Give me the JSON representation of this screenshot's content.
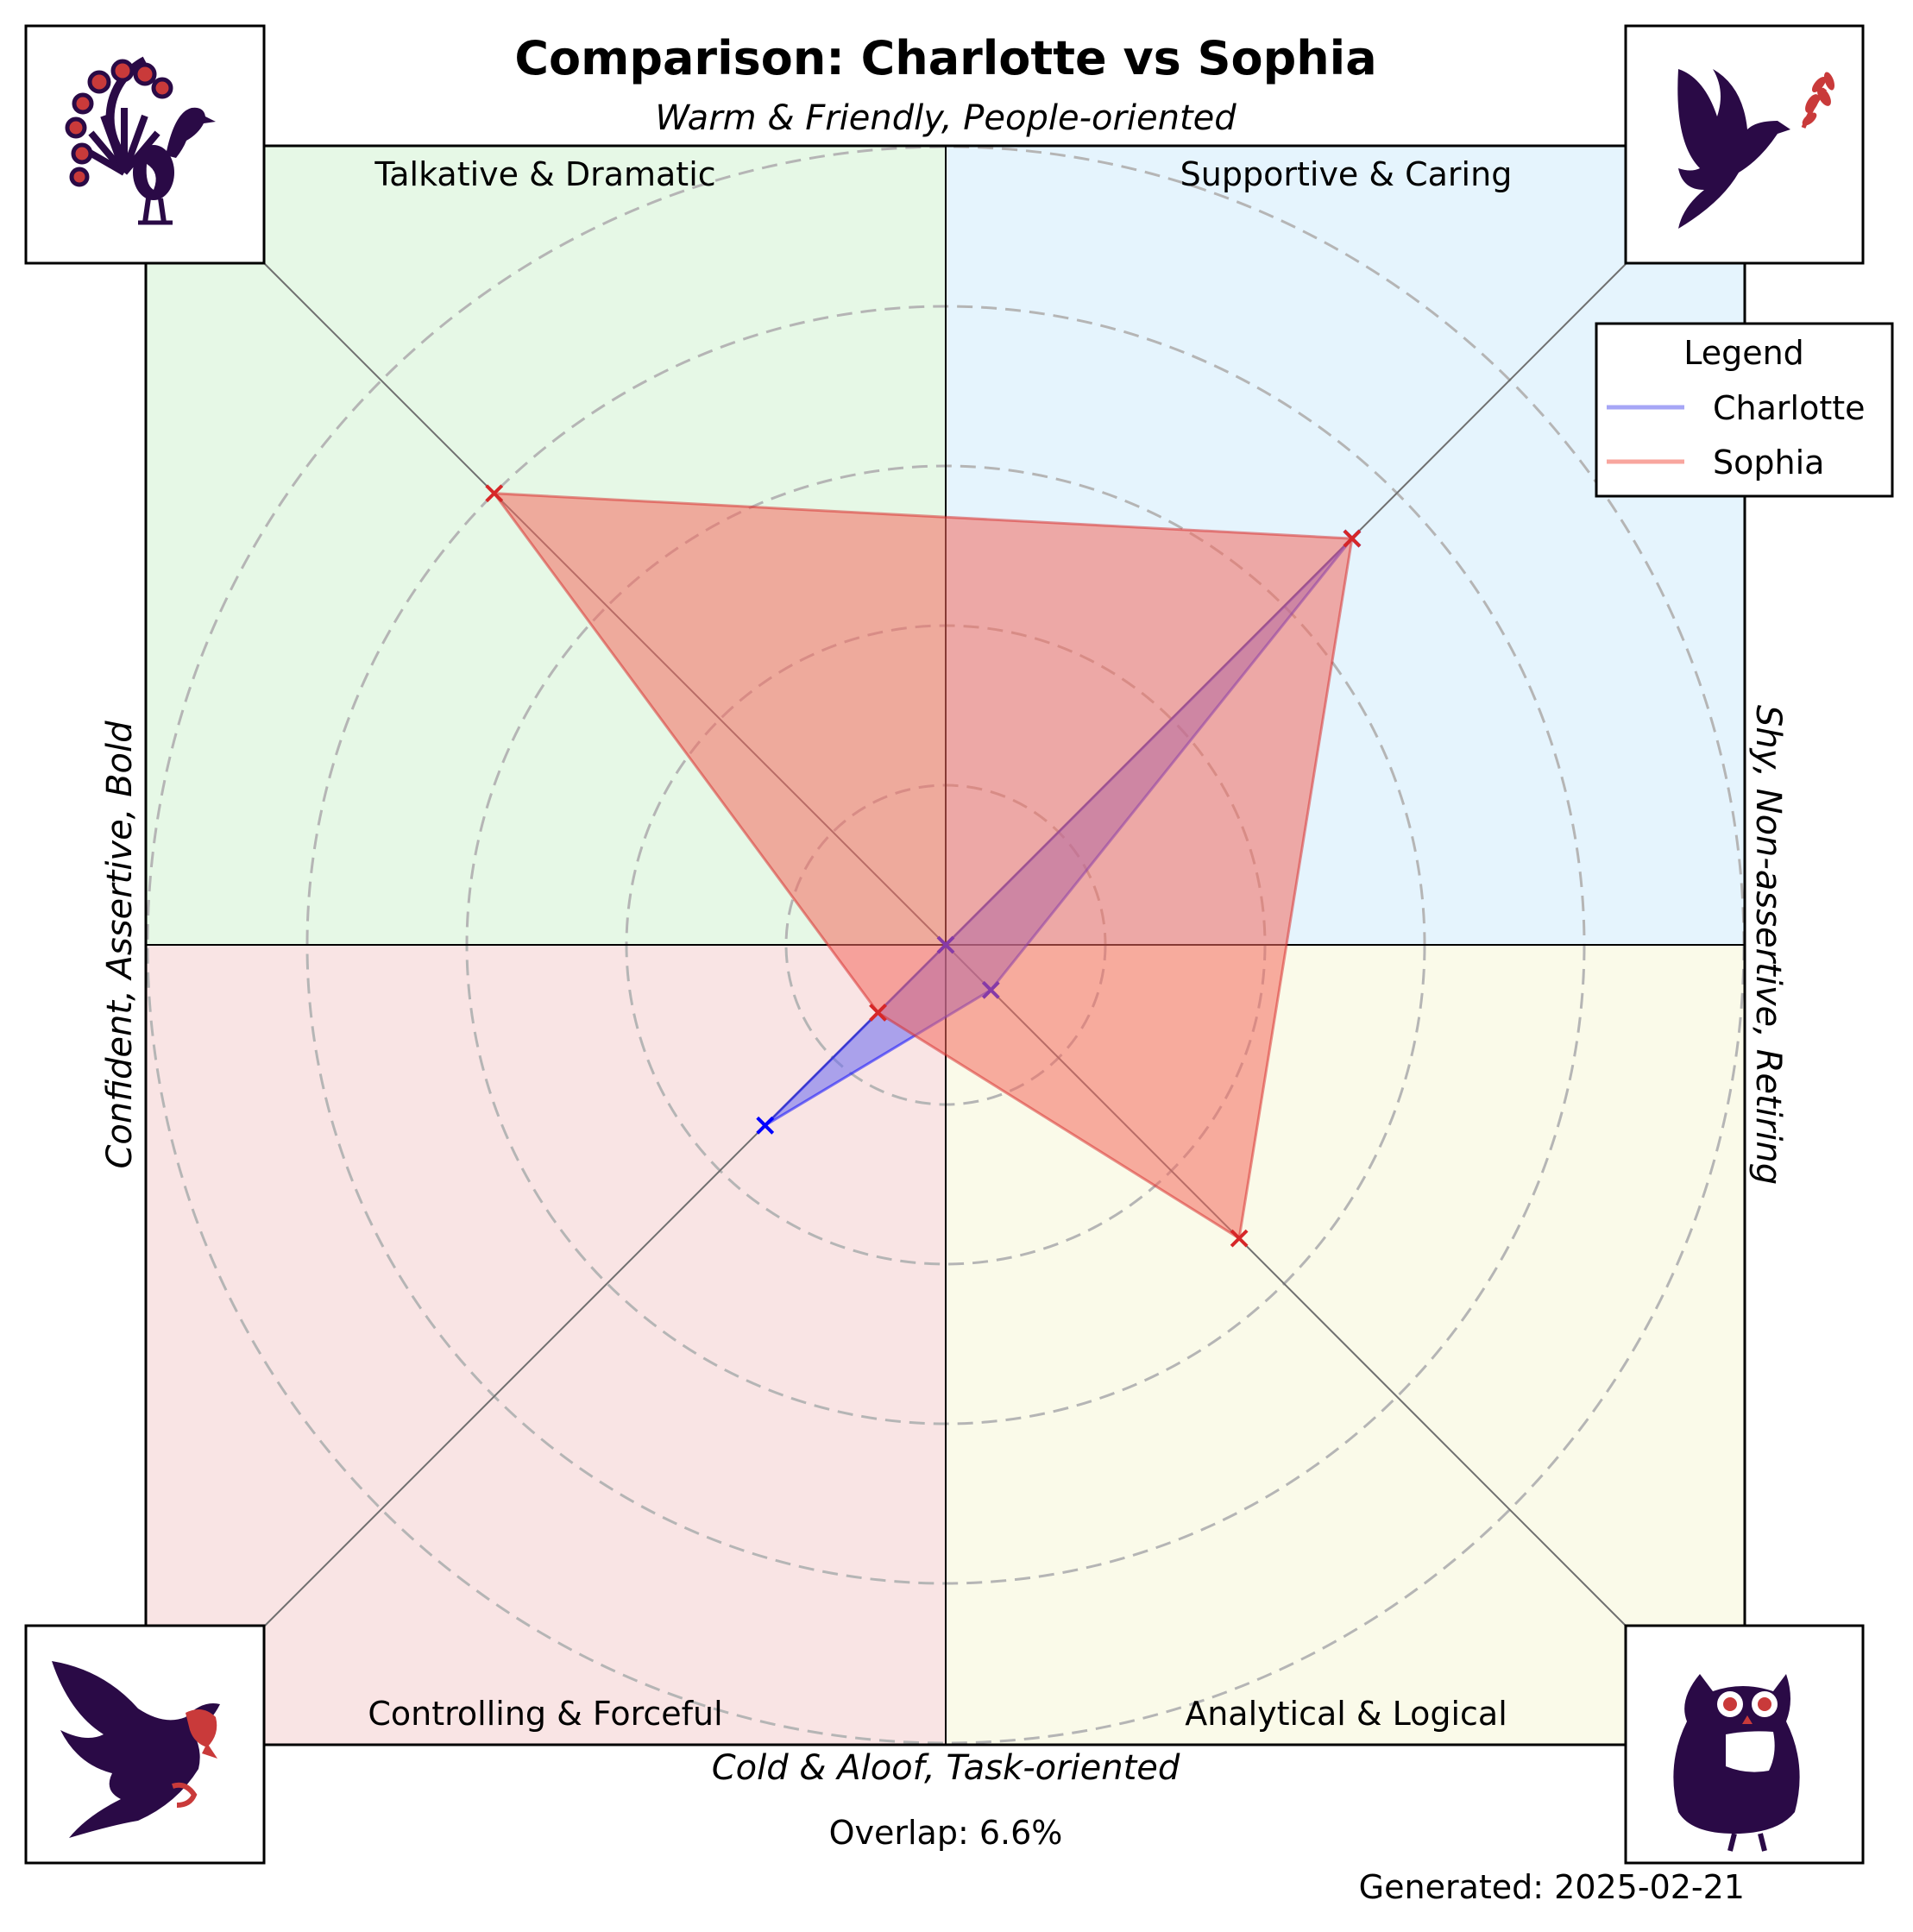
{
  "title": "Comparison: Charlotte vs Sophia",
  "axes": {
    "top": "Warm & Friendly, People-oriented",
    "bottom": "Cold & Aloof, Task-oriented",
    "left": "Confident, Assertive, Bold",
    "right": "Shy, Non-assertive, Retiring"
  },
  "quadrants": [
    {
      "key": "top-left",
      "label": "Talkative & Dramatic",
      "color": "#e6f8e6",
      "icon": "peacock-icon"
    },
    {
      "key": "top-right",
      "label": "Supportive & Caring",
      "color": "#e5f4fd",
      "icon": "dove-icon"
    },
    {
      "key": "bottom-left",
      "label": "Controlling & Forceful",
      "color": "#f9e4e4",
      "icon": "eagle-icon"
    },
    {
      "key": "bottom-right",
      "label": "Analytical & Logical",
      "color": "#fafae9",
      "icon": "owl-icon"
    }
  ],
  "legend": {
    "title": "Legend",
    "placement": "top-right"
  },
  "chart_data": {
    "type": "radar",
    "axes_order": [
      "Supportive & Caring",
      "Talkative & Dramatic",
      "Controlling & Forceful",
      "Analytical & Logical"
    ],
    "rlim": [
      0,
      100
    ],
    "rings": [
      20,
      40,
      60,
      80,
      100
    ],
    "series": [
      {
        "name": "Charlotte",
        "color": "#0000ff",
        "fill": "#6a6af0",
        "values": [
          72,
          0,
          32,
          8
        ]
      },
      {
        "name": "Sophia",
        "color": "#d62728",
        "fill": "#f46a5e",
        "values": [
          72,
          80,
          12,
          52
        ]
      }
    ]
  },
  "footer": {
    "overlap": "Overlap: 6.6%",
    "generated": "Generated: 2025-02-21"
  }
}
